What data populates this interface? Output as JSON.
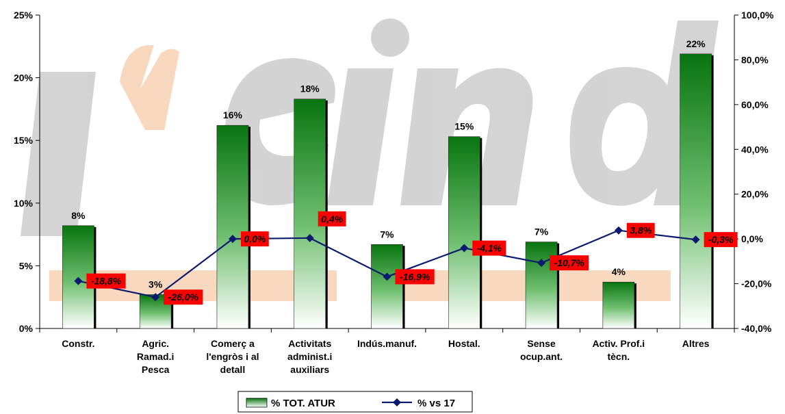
{
  "chart_data": {
    "type": "bar",
    "categories": [
      [
        "Constr."
      ],
      [
        "Agric.",
        "Ramad.i",
        "Pesca"
      ],
      [
        "Comerç a",
        "l'engròs i al",
        "detall"
      ],
      [
        "Activitats",
        "administ.i",
        "auxiliars"
      ],
      [
        "Indús.manuf."
      ],
      [
        "Hostal."
      ],
      [
        "Sense",
        "ocup.ant."
      ],
      [
        "Activ. Prof.i",
        "tècn."
      ],
      [
        "Altres"
      ]
    ],
    "series": [
      {
        "name": "% TOT. ATUR",
        "type": "bar",
        "axis": "left",
        "values": [
          8.2,
          2.7,
          16.2,
          18.3,
          6.7,
          15.3,
          6.9,
          3.7,
          21.9
        ],
        "labels": [
          "8%",
          "3%",
          "16%",
          "18%",
          "7%",
          "15%",
          "7%",
          "4%",
          "22%"
        ]
      },
      {
        "name": "% vs 17",
        "type": "line",
        "axis": "right",
        "values": [
          -18.8,
          -26.0,
          0.0,
          0.4,
          -16.9,
          -4.1,
          -10.7,
          3.8,
          -0.3
        ],
        "labels": [
          "-18,8%",
          "-26,0%",
          "0,0%",
          "0,4%",
          "-16,9%",
          "-4,1%",
          "-10,7%",
          "3,8%",
          "-0,3%"
        ]
      }
    ],
    "y_left": {
      "range": [
        0,
        25
      ],
      "ticks": [
        0,
        5,
        10,
        15,
        20,
        25
      ],
      "tick_labels": [
        "0%",
        "5%",
        "10%",
        "15%",
        "20%",
        "25%"
      ]
    },
    "y_right": {
      "range": [
        -40,
        100
      ],
      "ticks": [
        -40,
        -20,
        0,
        20,
        40,
        60,
        80,
        100
      ],
      "tick_labels": [
        "-40,0%",
        "-20,0%",
        "0,0%",
        "20,0%",
        "40,0%",
        "60,0%",
        "80,0%",
        "100,0%"
      ]
    },
    "legend": {
      "placement": "bottom-center"
    },
    "colors": {
      "bar_top": "#0a7a12",
      "bar_bottom": "#ffffff",
      "line": "#0a1a6e",
      "label_box": "#ff0000"
    }
  }
}
